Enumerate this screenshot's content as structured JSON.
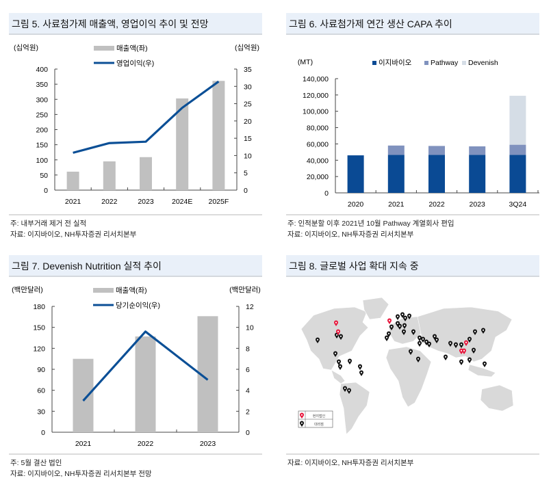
{
  "figures": [
    {
      "title": "그림 5.  사료첨가제 매출액, 영업이익 추이 및 전망",
      "left_unit": "(십억원)",
      "right_unit": "(십억원)",
      "legend": [
        "매출액(좌)",
        "영업이익(우)"
      ],
      "notes": [
        "주: 내부거래 제거 전 실적",
        "자료: 이지바이오, NH투자증권 리서치본부"
      ]
    },
    {
      "title": "그림 6.  사료첨가제 연간 생산 CAPA 추이",
      "left_unit": "(MT)",
      "legend": [
        "이지바이오",
        "Pathway",
        "Devenish"
      ],
      "notes": [
        "주: 인적분할 이후 2021년 10월 Pathway 계열회사 편입",
        "자료: 이지바이오, NH투자증권 리서치본부"
      ]
    },
    {
      "title": "그림 7.  Devenish Nutrition 실적 추이",
      "left_unit": "(백만달러)",
      "right_unit": "(백만달러)",
      "legend": [
        "매출액(좌)",
        "당기순이익(우)"
      ],
      "notes": [
        "주: 5월 결산 법인",
        "자료: 이지바이오, NH투자증권 리서치본부 전망"
      ]
    },
    {
      "title": "그림 8.  글로벌 사업 확대 지속 중",
      "legend": [
        "현지법인",
        "대리점"
      ],
      "notes": [
        "자료: 이지바이오, NH투자증권 리서치본부"
      ]
    }
  ],
  "colors": {
    "bar_gray": "#c0c0c0",
    "line_blue": "#0b4f96",
    "easybio": "#0a4a94",
    "pathway": "#8092be",
    "devenish": "#d5dde6",
    "title_bg": "#e9f0f9",
    "pin_red": "#e8163c",
    "pin_black": "#111111",
    "land": "#d9d9d9"
  },
  "chart_data": [
    {
      "type": "bar+line",
      "title": "사료첨가제 매출액, 영업이익 추이 및 전망",
      "categories": [
        "2021",
        "2022",
        "2023",
        "2024E",
        "2025F"
      ],
      "series": [
        {
          "name": "매출액(좌)",
          "type": "bar",
          "axis": "left",
          "values": [
            61,
            95,
            109,
            303,
            361
          ]
        },
        {
          "name": "영업이익(우)",
          "type": "line",
          "axis": "right",
          "values": [
            10.8,
            13.6,
            14.0,
            23.8,
            31.4
          ]
        }
      ],
      "ylabel_left": "(십억원)",
      "ylabel_right": "(십억원)",
      "ylim_left": [
        0,
        400
      ],
      "yticks_left": [
        0,
        50,
        100,
        150,
        200,
        250,
        300,
        350,
        400
      ],
      "ylim_right": [
        0,
        35
      ],
      "yticks_right": [
        0,
        5,
        10,
        15,
        20,
        25,
        30,
        35
      ],
      "grid": false,
      "legend_position": "top"
    },
    {
      "type": "stacked_bar",
      "title": "사료첨가제 연간 생산 CAPA 추이",
      "categories": [
        "2020",
        "2021",
        "2022",
        "2023",
        "3Q24"
      ],
      "series": [
        {
          "name": "이지바이오",
          "values": [
            46000,
            46500,
            46500,
            46500,
            46500
          ]
        },
        {
          "name": "Pathway",
          "values": [
            0,
            11500,
            11000,
            10500,
            12500
          ]
        },
        {
          "name": "Devenish",
          "values": [
            0,
            0,
            0,
            0,
            60000
          ]
        }
      ],
      "ylabel": "(MT)",
      "ylim": [
        0,
        140000
      ],
      "yticks": [
        0,
        20000,
        40000,
        60000,
        80000,
        100000,
        120000,
        140000
      ],
      "grid": false,
      "legend_position": "top"
    },
    {
      "type": "bar+line",
      "title": "Devenish Nutrition 실적 추이",
      "categories": [
        "2021",
        "2022",
        "2023"
      ],
      "series": [
        {
          "name": "매출액(좌)",
          "type": "bar",
          "axis": "left",
          "values": [
            105,
            137,
            166
          ]
        },
        {
          "name": "당기순이익(우)",
          "type": "line",
          "axis": "right",
          "values": [
            3.0,
            9.6,
            5.0
          ]
        }
      ],
      "ylabel_left": "(백만달러)",
      "ylabel_right": "(백만달러)",
      "ylim_left": [
        0,
        180
      ],
      "yticks_left": [
        0,
        30,
        60,
        90,
        120,
        150,
        180
      ],
      "ylim_right": [
        0,
        12
      ],
      "yticks_right": [
        0,
        2,
        4,
        6,
        8,
        10,
        12
      ],
      "grid": false,
      "legend_position": "top"
    },
    {
      "type": "map",
      "title": "글로벌 사업 확대 지속 중",
      "legend": [
        "현지법인",
        "대리점"
      ],
      "local_subsidiary_pins": 6,
      "distributor_pins": 48
    }
  ]
}
